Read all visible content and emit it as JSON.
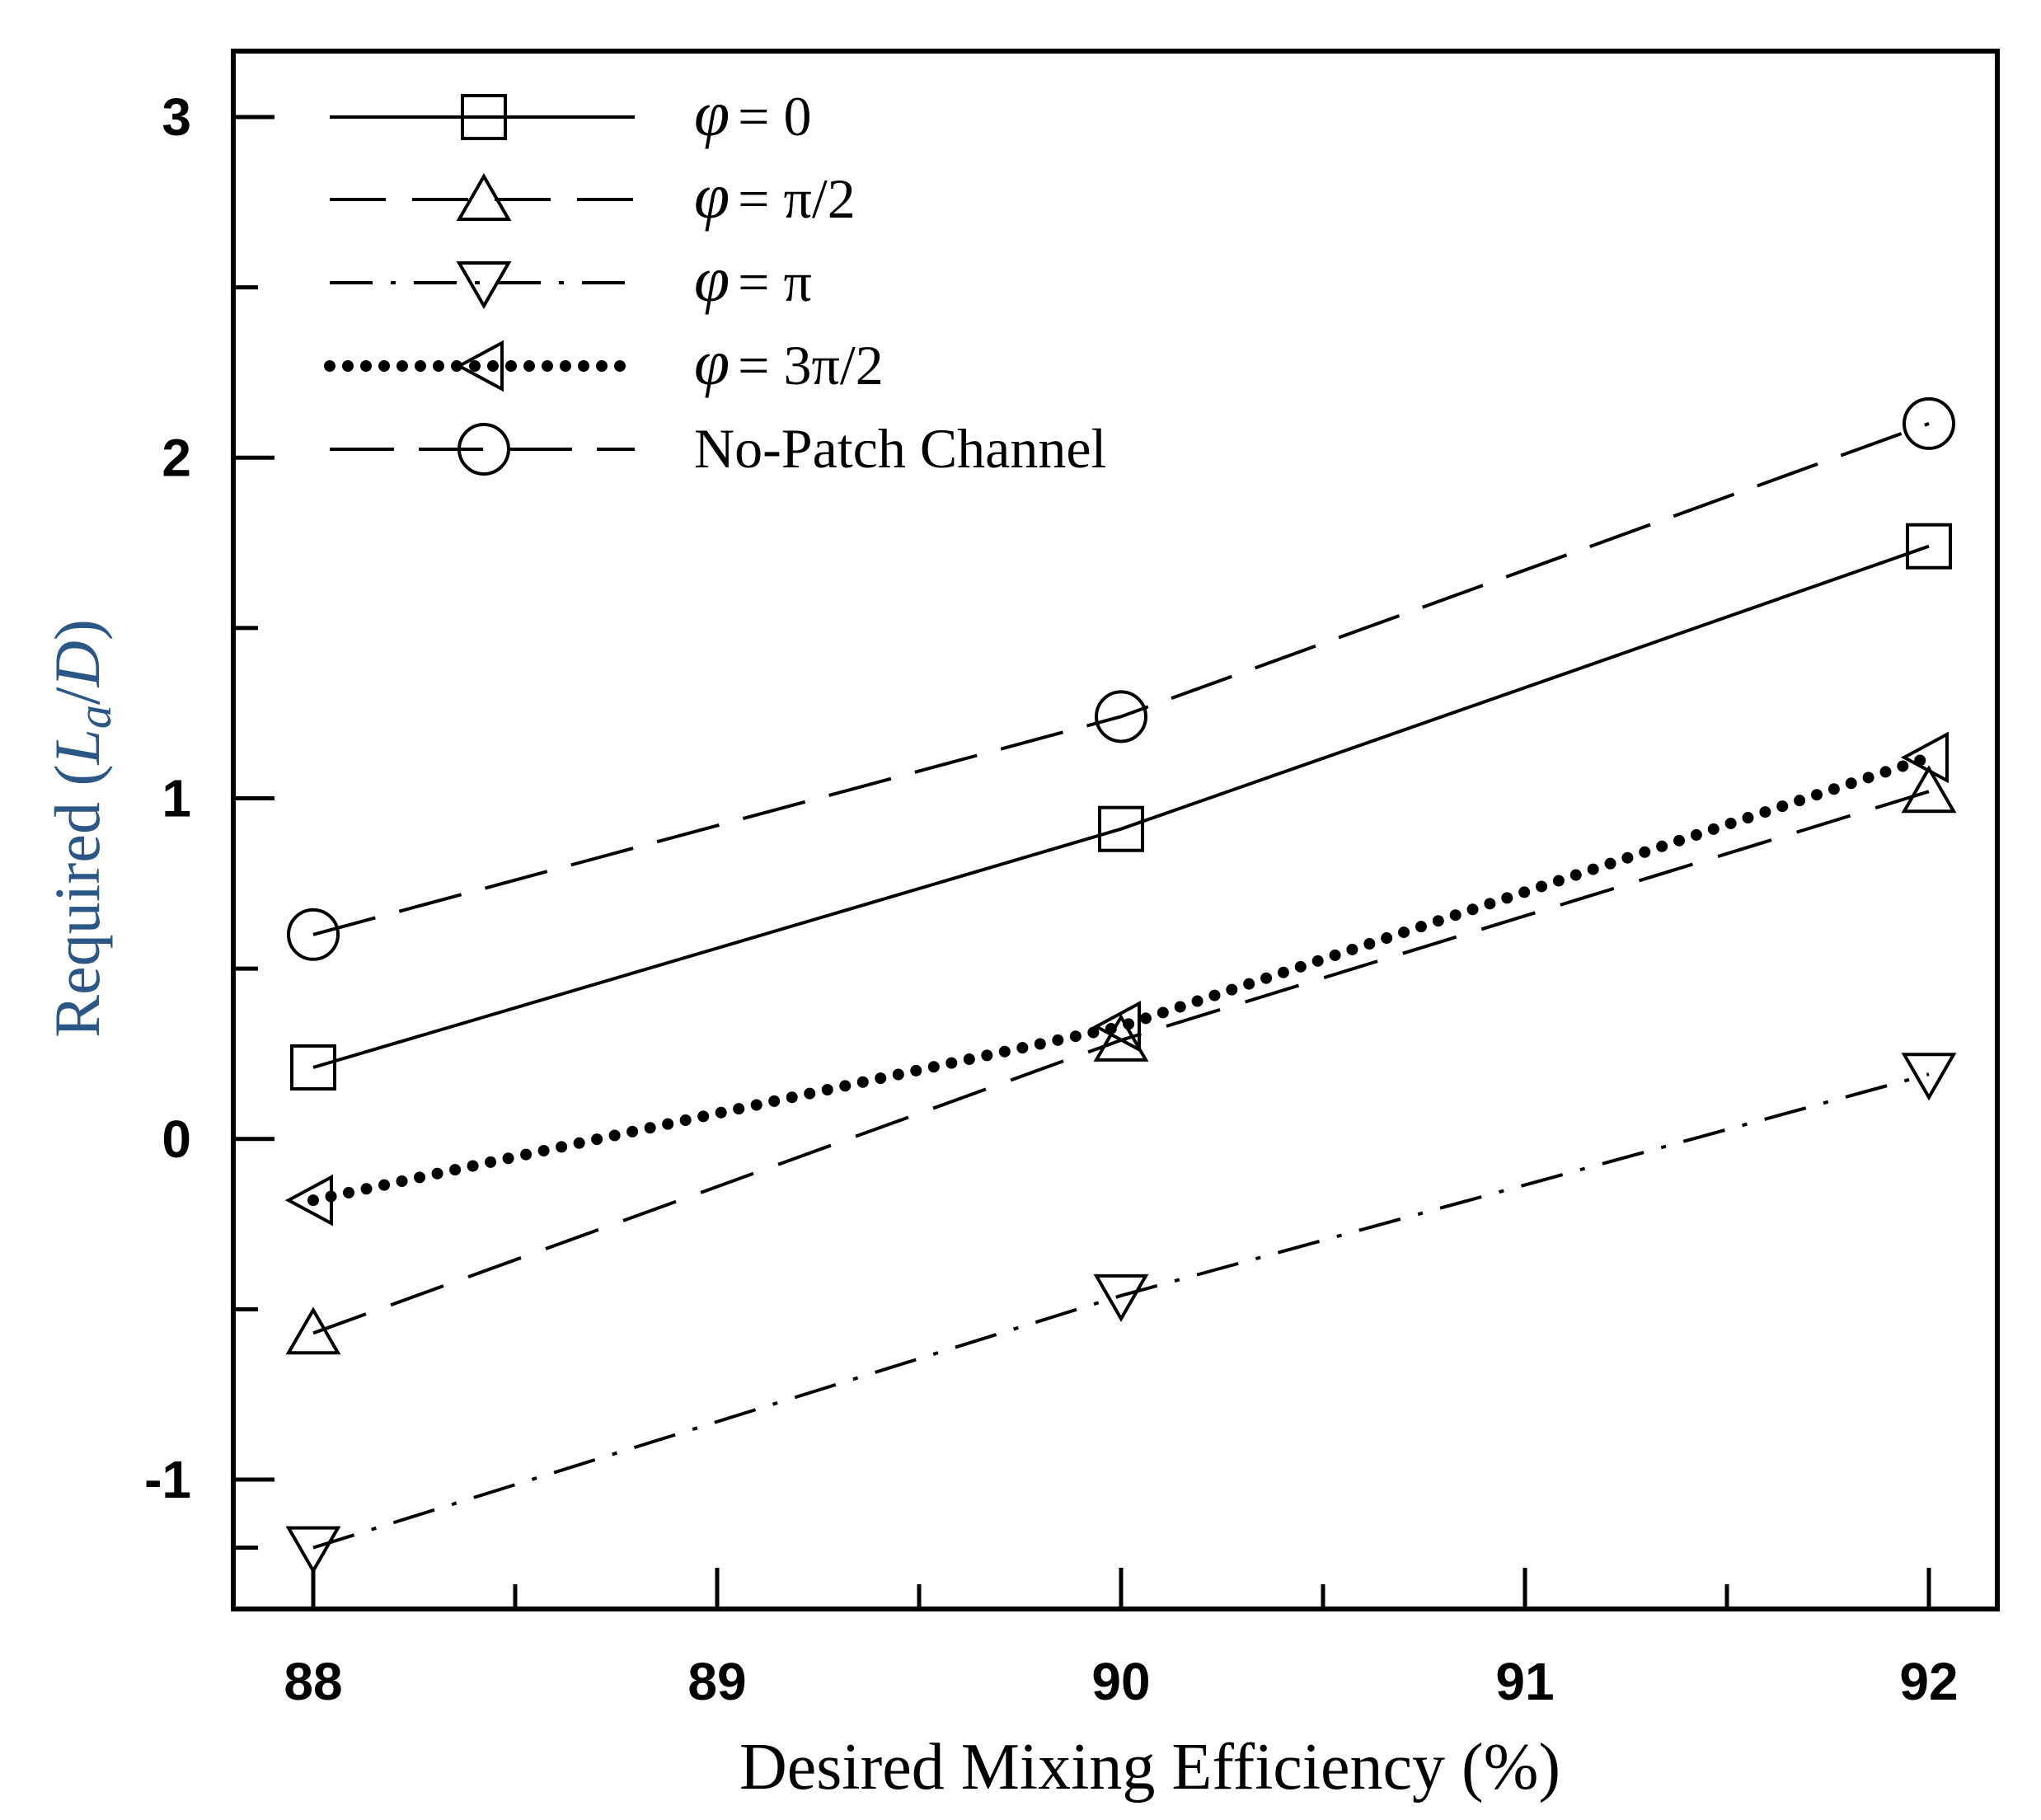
{
  "chart_data": {
    "type": "line",
    "title": "",
    "xlabel": "Desired Mixing Efficiency  (%)",
    "ylabel": {
      "prefix": "Required ",
      "open": "(",
      "var": "L",
      "sub": "a",
      "slash": "/",
      "var2": "D",
      "close": ")"
    },
    "xlim": [
      87.8,
      92.2
    ],
    "ylim": [
      -1.4,
      3.2
    ],
    "xticks": [
      88,
      89,
      90,
      91,
      92
    ],
    "xtick_labels": [
      "88",
      "89",
      "90",
      "91",
      "92"
    ],
    "yticks": [
      -1,
      0,
      1,
      2,
      3
    ],
    "ytick_labels": [
      "-1",
      "0",
      "1",
      "2",
      "3"
    ],
    "x": [
      88,
      90,
      92
    ],
    "series": [
      {
        "name": "φ = 0",
        "symbol": "φ",
        "rest": "= 0",
        "style": "solid",
        "marker": "square",
        "values": [
          0.21,
          0.91,
          1.74
        ]
      },
      {
        "name": "φ = π/2",
        "symbol": "φ",
        "rest": "= π/2",
        "style": "dashed",
        "marker": "triangle-up",
        "values": [
          -0.57,
          0.29,
          1.02
        ]
      },
      {
        "name": "φ = π",
        "symbol": "φ",
        "rest": "= π",
        "style": "dashdot",
        "marker": "triangle-down",
        "values": [
          -1.2,
          -0.46,
          0.19
        ]
      },
      {
        "name": "φ = 3π/2",
        "symbol": "φ",
        "rest": "= 3π/2",
        "style": "dotted",
        "marker": "triangle-left",
        "values": [
          -0.18,
          0.33,
          1.12
        ]
      },
      {
        "name": "No-Patch Channel",
        "symbol": "",
        "rest": "No-Patch Channel",
        "style": "longdash",
        "marker": "circle",
        "values": [
          0.6,
          1.24,
          2.1
        ]
      }
    ],
    "legend_position": "top-left",
    "grid": false
  }
}
